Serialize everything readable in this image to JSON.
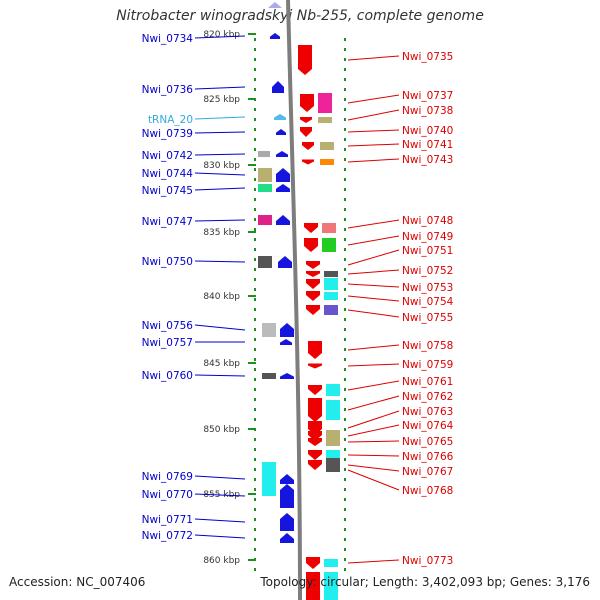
{
  "title": "Nitrobacter winogradskyi Nb-255, complete genome",
  "accession_label": "Accession: NC_007406",
  "stats_label": "Topology: circular; Length: 3,402,093 bp; Genes: 3,176",
  "colors": {
    "backbone": "#7d7d7d",
    "left_label": "#0000cc",
    "right_label": "#dd0000",
    "trna_label": "#33aadd",
    "tick_marks": "#1f8f1f",
    "scale_text": "#333333"
  },
  "scale_ticks": [
    {
      "label": "820 kbp"
    },
    {
      "label": "825 kbp"
    },
    {
      "label": "830 kbp"
    },
    {
      "label": "835 kbp"
    },
    {
      "label": "840 kbp"
    },
    {
      "label": "845 kbp"
    },
    {
      "label": "850 kbp"
    },
    {
      "label": "855 kbp"
    },
    {
      "label": "860 kbp"
    }
  ],
  "left_genes": [
    {
      "label": "Nwi_0734",
      "type": "gene"
    },
    {
      "label": "Nwi_0736",
      "type": "gene"
    },
    {
      "label": "tRNA_20",
      "type": "trna"
    },
    {
      "label": "Nwi_0739",
      "type": "gene"
    },
    {
      "label": "Nwi_0742",
      "type": "gene"
    },
    {
      "label": "Nwi_0744",
      "type": "gene"
    },
    {
      "label": "Nwi_0745",
      "type": "gene"
    },
    {
      "label": "Nwi_0747",
      "type": "gene"
    },
    {
      "label": "Nwi_0750",
      "type": "gene"
    },
    {
      "label": "Nwi_0756",
      "type": "gene"
    },
    {
      "label": "Nwi_0757",
      "type": "gene"
    },
    {
      "label": "Nwi_0760",
      "type": "gene"
    },
    {
      "label": "Nwi_0769",
      "type": "gene"
    },
    {
      "label": "Nwi_0770",
      "type": "gene"
    },
    {
      "label": "Nwi_0771",
      "type": "gene"
    },
    {
      "label": "Nwi_0772",
      "type": "gene"
    }
  ],
  "right_genes": [
    {
      "label": "Nwi_0735"
    },
    {
      "label": "Nwi_0737"
    },
    {
      "label": "Nwi_0738"
    },
    {
      "label": "Nwi_0740"
    },
    {
      "label": "Nwi_0741"
    },
    {
      "label": "Nwi_0743"
    },
    {
      "label": "Nwi_0748"
    },
    {
      "label": "Nwi_0749"
    },
    {
      "label": "Nwi_0751"
    },
    {
      "label": "Nwi_0752"
    },
    {
      "label": "Nwi_0753"
    },
    {
      "label": "Nwi_0754"
    },
    {
      "label": "Nwi_0755"
    },
    {
      "label": "Nwi_0758"
    },
    {
      "label": "Nwi_0759"
    },
    {
      "label": "Nwi_0761"
    },
    {
      "label": "Nwi_0762"
    },
    {
      "label": "Nwi_0763"
    },
    {
      "label": "Nwi_0764"
    },
    {
      "label": "Nwi_0765"
    },
    {
      "label": "Nwi_0766"
    },
    {
      "label": "Nwi_0767"
    },
    {
      "label": "Nwi_0768"
    },
    {
      "label": "Nwi_0773"
    }
  ]
}
